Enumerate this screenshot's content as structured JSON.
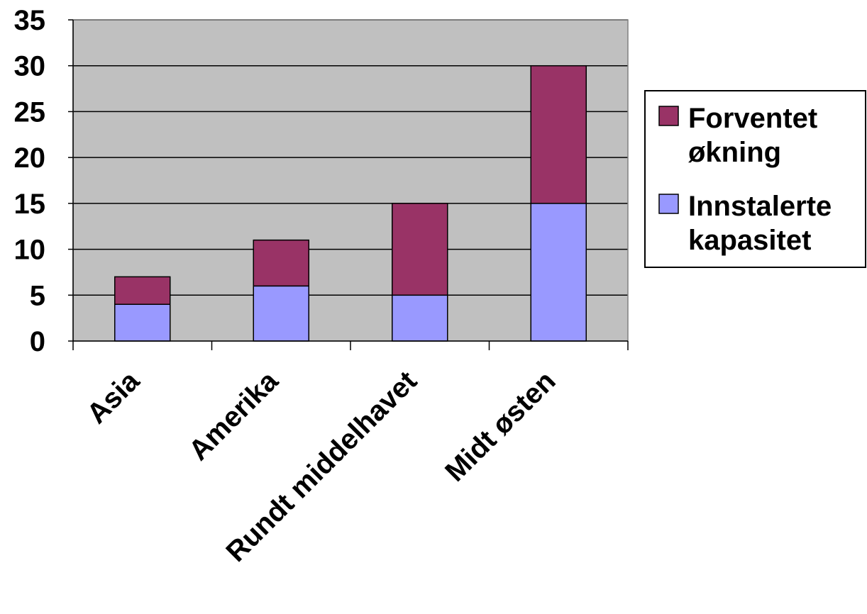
{
  "chart_data": {
    "type": "bar",
    "stacked": true,
    "categories": [
      "Asia",
      "Amerika",
      "Rundt middelhavet",
      "Midt østen"
    ],
    "series": [
      {
        "name": "Innstalerte kapasitet",
        "values": [
          4,
          6,
          5,
          15
        ],
        "color": "#9999ff"
      },
      {
        "name": "Forventet økning",
        "values": [
          3,
          5,
          10,
          15
        ],
        "color": "#993366"
      }
    ],
    "legend_order": [
      1,
      0
    ],
    "legend_lines": [
      [
        "Forventet",
        "økning"
      ],
      [
        "Innstalerte",
        "kapasitet"
      ]
    ],
    "yticks": [
      0,
      5,
      10,
      15,
      20,
      25,
      30,
      35
    ],
    "ylim": [
      0,
      35
    ],
    "grid": true,
    "legend_position": "right",
    "plot_background": "#c0c0c0",
    "title": "",
    "xlabel": "",
    "ylabel": ""
  }
}
